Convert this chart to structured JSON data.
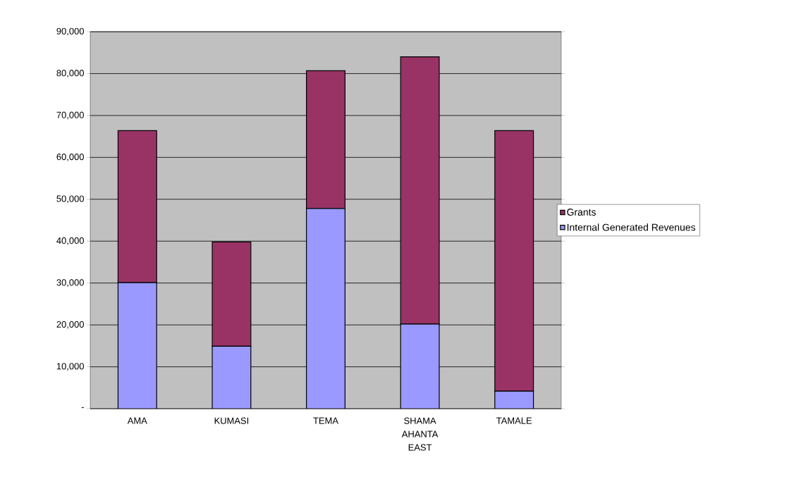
{
  "chart_data": {
    "type": "bar",
    "stacked": true,
    "categories": [
      "AMA",
      "KUMASI",
      "TEMA",
      "SHAMA AHANTA EAST",
      "TAMALE"
    ],
    "series": [
      {
        "name": "Internal Generated Revenues",
        "color": "#9999ff",
        "values": [
          30100,
          14900,
          47800,
          20200,
          4200
        ]
      },
      {
        "name": "Grants",
        "color": "#993366",
        "values": [
          36300,
          24900,
          32900,
          63800,
          62200
        ]
      }
    ],
    "ylim": [
      0,
      90000
    ],
    "yticks": [
      {
        "value": 0,
        "label": "-"
      },
      {
        "value": 10000,
        "label": "10,000"
      },
      {
        "value": 20000,
        "label": "20,000"
      },
      {
        "value": 30000,
        "label": "30,000"
      },
      {
        "value": 40000,
        "label": "40,000"
      },
      {
        "value": 50000,
        "label": "50,000"
      },
      {
        "value": 60000,
        "label": "60,000"
      },
      {
        "value": 70000,
        "label": "70,000"
      },
      {
        "value": 80000,
        "label": "80,000"
      },
      {
        "value": 90000,
        "label": "90,000"
      }
    ],
    "grid": "y",
    "legend": "right"
  }
}
